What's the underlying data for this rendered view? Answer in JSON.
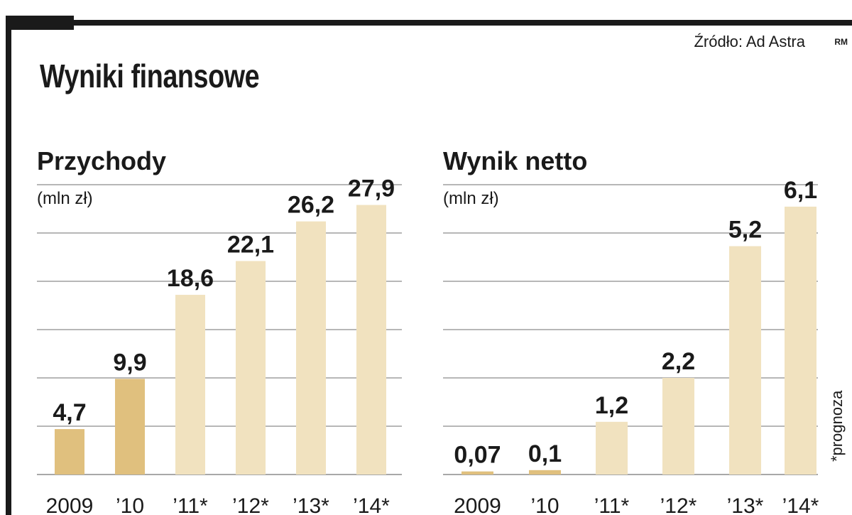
{
  "header": {
    "title": "Wyniki finansowe",
    "source": "Źródło: Ad Astra",
    "source_tag": "RM",
    "footnote": "*prognoza"
  },
  "colors": {
    "actual_bar": "#e0c07e",
    "forecast_bar": "#f1e2bf",
    "gridline": "#8c8c8c",
    "text": "#1a1a1a",
    "frame": "#1a1a1a"
  },
  "chart_data": [
    {
      "type": "bar",
      "title": "Przychody",
      "unit": "(mln zł)",
      "categories": [
        "2009",
        "’10",
        "’11*",
        "’12*",
        "’13*",
        "’14*"
      ],
      "values": [
        4.7,
        9.9,
        18.6,
        22.1,
        26.2,
        27.9
      ],
      "value_labels": [
        "4,7",
        "9,9",
        "18,6",
        "22,1",
        "26,2",
        "27,9"
      ],
      "forecast": [
        false,
        false,
        true,
        true,
        true,
        true
      ],
      "ylim": [
        0,
        30
      ],
      "grid": true
    },
    {
      "type": "bar",
      "title": "Wynik netto",
      "unit": "(mln zł)",
      "categories": [
        "2009",
        "’10",
        "’11*",
        "’12*",
        "’13*",
        "’14*"
      ],
      "values": [
        0.07,
        0.1,
        1.2,
        2.2,
        5.2,
        6.1
      ],
      "value_labels": [
        "0,07",
        "0,1",
        "1,2",
        "2,2",
        "5,2",
        "6,1"
      ],
      "forecast": [
        false,
        false,
        true,
        true,
        true,
        true
      ],
      "ylim": [
        0,
        6.6
      ],
      "grid": true
    }
  ]
}
